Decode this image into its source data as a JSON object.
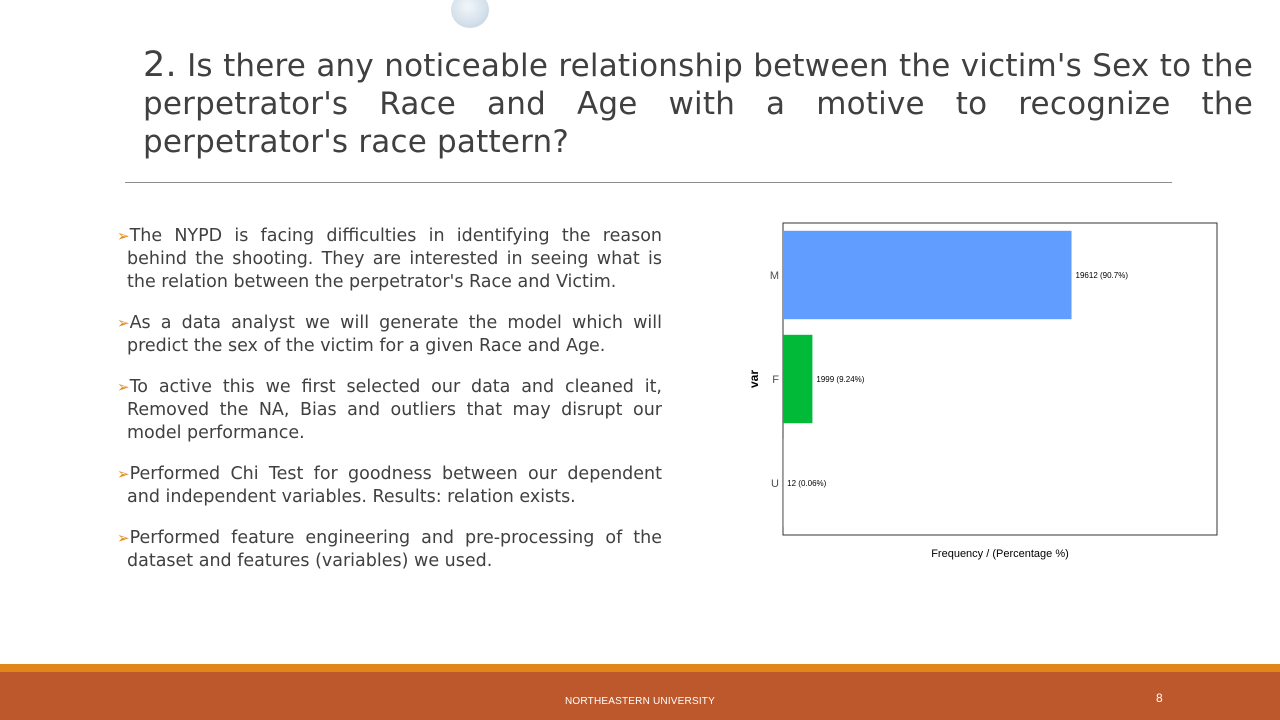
{
  "slide": {
    "title_number": "2.",
    "title_text": "Is there any noticeable relationship between the victim's Sex to the perpetrator's Race and Age with a motive to recognize the perpetrator's race pattern?",
    "bullets": [
      "The NYPD is facing difficulties in identifying the reason behind the shooting. They are interested in seeing what is the relation between the perpetrator's Race and Victim.",
      "As a data analyst we will generate the model which will predict the sex of the victim for a given Race and Age.",
      "To active this we first selected our data and cleaned it, Removed the NA, Bias and outliers that may disrupt our model performance.",
      "Performed Chi Test for goodness between our dependent and independent variables. Results: relation exists.",
      "Performed feature engineering and pre-processing of the dataset and features (variables) we used."
    ],
    "bullet_marker": "➢",
    "footer_text": "NORTHEASTERN UNIVERSITY",
    "page_number": "8"
  },
  "colors": {
    "accent_orange": "#e0861a",
    "footer_bar": "#bd582c",
    "title_text": "#404040",
    "bar_M": "#619cff",
    "bar_F": "#00ba38"
  },
  "chart_data": {
    "type": "bar",
    "orientation": "horizontal",
    "categories": [
      "M",
      "F",
      "U"
    ],
    "values": [
      19612,
      1999,
      12
    ],
    "labels": [
      "19612 (90.7%)",
      "1999 (9.24%)",
      "12 (0.06%)"
    ],
    "colors": [
      "#619cff",
      "#00ba38",
      "#f8766d"
    ],
    "xlabel": "Frequency / (Percentage %)",
    "ylabel": "var",
    "xlim": [
      0,
      29500
    ],
    "grid": false,
    "legend": "none"
  }
}
